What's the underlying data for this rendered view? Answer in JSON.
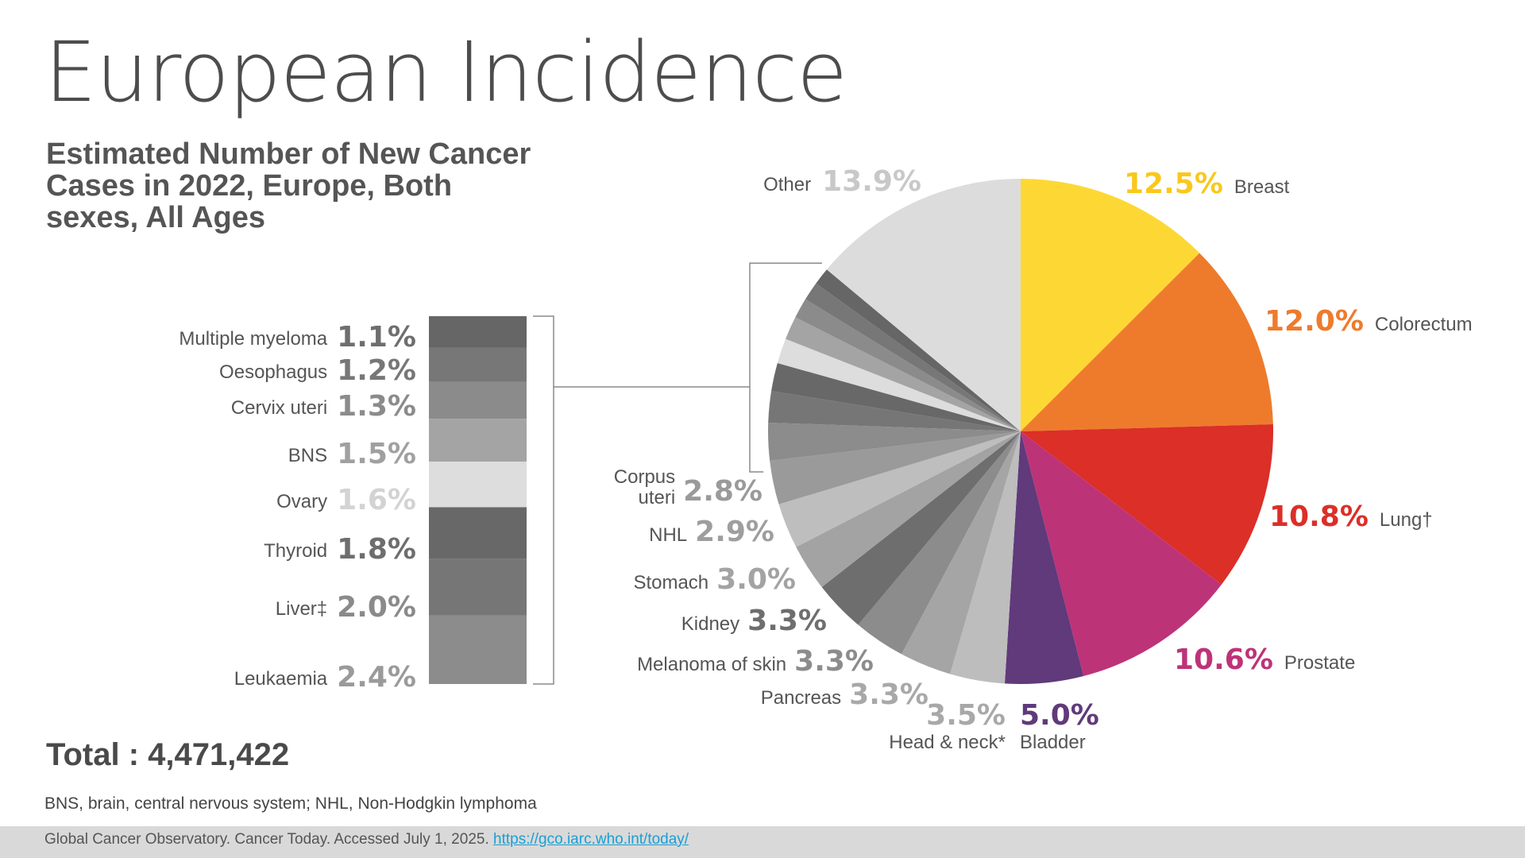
{
  "title": "European Incidence",
  "subtitle": "Estimated Number of New Cancer Cases in 2022, Europe, Both sexes, All Ages",
  "total": "Total : 4,471,422",
  "footnote": "BNS, brain, central nervous system; NHL, Non-Hodgkin lymphoma",
  "source": {
    "text": "Global Cancer Observatory. Cancer Today. Accessed July 1, 2025.",
    "link": "https://gco.iarc.who.int/today/"
  },
  "chart_data": {
    "type": "pie",
    "title": "European Incidence",
    "unit": "%",
    "slices": [
      {
        "name": "Breast",
        "value": 12.5,
        "label": "12.5%",
        "color": "#fdd835",
        "pct_color": "#f9c81c"
      },
      {
        "name": "Colorectum",
        "value": 12.0,
        "label": "12.0%",
        "color": "#ee7b2c",
        "pct_color": "#ee7b2c"
      },
      {
        "name": "Lung†",
        "value": 10.8,
        "label": "10.8%",
        "color": "#db2f28",
        "pct_color": "#db2f28"
      },
      {
        "name": "Prostate",
        "value": 10.6,
        "label": "10.6%",
        "color": "#bd3378",
        "pct_color": "#bd3378"
      },
      {
        "name": "Bladder",
        "value": 5.0,
        "label": "5.0%",
        "color": "#603a7b",
        "pct_color": "#603a7b"
      },
      {
        "name": "Head & neck*",
        "value": 3.5,
        "label": "3.5%",
        "color": "#bdbdbd",
        "pct_color": "#a8a8a8"
      },
      {
        "name": "Pancreas",
        "value": 3.3,
        "label": "3.3%",
        "color": "#a5a5a5",
        "pct_color": "#a8a8a8"
      },
      {
        "name": "Melanoma of skin",
        "value": 3.3,
        "label": "3.3%",
        "color": "#8c8c8c",
        "pct_color": "#8c8c8c"
      },
      {
        "name": "Kidney",
        "value": 3.3,
        "label": "3.3%",
        "color": "#6e6e6e",
        "pct_color": "#6e6e6e"
      },
      {
        "name": "Stomach",
        "value": 3.0,
        "label": "3.0%",
        "color": "#a3a3a3",
        "pct_color": "#a3a3a3"
      },
      {
        "name": "NHL",
        "value": 2.9,
        "label": "2.9%",
        "color": "#bebebe",
        "pct_color": "#9e9e9e"
      },
      {
        "name": "Corpus uteri",
        "value": 2.8,
        "label": "2.8%",
        "color": "#9a9a9a",
        "pct_color": "#9a9a9a"
      },
      {
        "name": "Leukaemia",
        "value": 2.4,
        "label": "2.4%",
        "color": "#8c8c8c",
        "pct_color": "#9a9a9a"
      },
      {
        "name": "Liver‡",
        "value": 2.0,
        "label": "2.0%",
        "color": "#767676",
        "pct_color": "#8a8a8a"
      },
      {
        "name": "Thyroid",
        "value": 1.8,
        "label": "1.8%",
        "color": "#686868",
        "pct_color": "#6e6e6e"
      },
      {
        "name": "Ovary",
        "value": 1.6,
        "label": "1.6%",
        "color": "#dddddd",
        "pct_color": "#d3d3d3"
      },
      {
        "name": "BNS",
        "value": 1.5,
        "label": "1.5%",
        "color": "#a4a4a4",
        "pct_color": "#a0a0a0"
      },
      {
        "name": "Cervix uteri",
        "value": 1.3,
        "label": "1.3%",
        "color": "#8b8b8b",
        "pct_color": "#8b8b8b"
      },
      {
        "name": "Oesophagus",
        "value": 1.2,
        "label": "1.2%",
        "color": "#777777",
        "pct_color": "#777777"
      },
      {
        "name": "Multiple myeloma",
        "value": 1.1,
        "label": "1.1%",
        "color": "#666666",
        "pct_color": "#6e6e6e"
      },
      {
        "name": "Other",
        "value": 13.9,
        "label": "13.9%",
        "color": "#dcdcdc",
        "pct_color": "#c8c8c8"
      }
    ],
    "stacked_bar": [
      "Multiple myeloma",
      "Oesophagus",
      "Cervix uteri",
      "BNS",
      "Ovary",
      "Thyroid",
      "Liver‡",
      "Leukaemia"
    ]
  }
}
